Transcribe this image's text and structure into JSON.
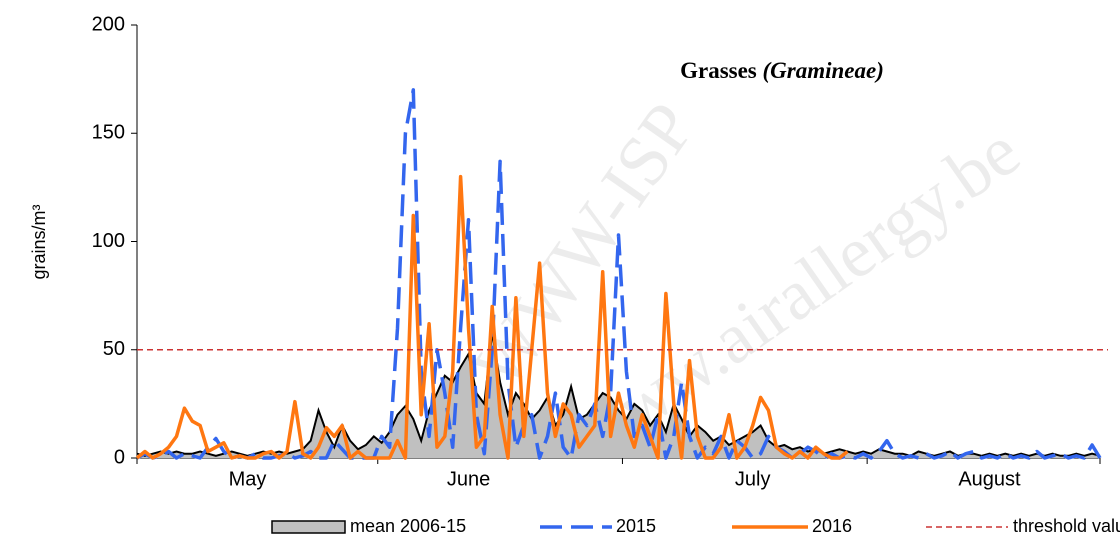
{
  "chart_data": {
    "type": "line",
    "title": "Grasses",
    "title_italic": "(Gramineae)",
    "ylabel": "grains/m³",
    "watermark": [
      "WWW-ISP",
      "www.airallergy.be"
    ],
    "categories": [
      null,
      null,
      null,
      null,
      null,
      null,
      null,
      null,
      null,
      null,
      null,
      null,
      null,
      null,
      "May",
      null,
      null,
      null,
      null,
      null,
      null,
      null,
      null,
      null,
      null,
      null,
      null,
      null,
      null,
      null,
      null,
      null,
      null,
      null,
      null,
      null,
      null,
      null,
      null,
      null,
      null,
      null,
      "June",
      null,
      null,
      null,
      null,
      null,
      null,
      null,
      null,
      null,
      null,
      null,
      null,
      null,
      null,
      null,
      null,
      null,
      null,
      null,
      null,
      null,
      null,
      null,
      null,
      null,
      null,
      null,
      null,
      null,
      null,
      null,
      null,
      null,
      null,
      null,
      "July",
      null,
      null,
      null,
      null,
      null,
      null,
      null,
      null,
      null,
      null,
      null,
      null,
      null,
      null,
      null,
      null,
      null,
      null,
      null,
      null,
      null,
      null,
      null,
      null,
      null,
      null,
      null,
      null,
      null,
      "August",
      null,
      null,
      null,
      null,
      null,
      null,
      null,
      null,
      null,
      null,
      null,
      null,
      null,
      null
    ],
    "series": [
      {
        "name": "mean 2006-15",
        "color": "#000000",
        "fill": "#c0c0c0",
        "style": "area",
        "values": [
          2,
          1,
          2,
          3,
          2,
          3,
          2,
          2,
          3,
          2,
          1,
          2,
          3,
          2,
          1,
          2,
          3,
          2,
          3,
          2,
          3,
          4,
          8,
          22,
          12,
          5,
          15,
          8,
          4,
          6,
          10,
          7,
          12,
          20,
          24,
          18,
          8,
          22,
          30,
          38,
          35,
          42,
          48,
          30,
          25,
          58,
          35,
          20,
          30,
          25,
          18,
          22,
          28,
          15,
          20,
          33,
          18,
          20,
          25,
          30,
          28,
          22,
          18,
          25,
          22,
          15,
          20,
          12,
          25,
          18,
          10,
          15,
          12,
          8,
          10,
          6,
          8,
          10,
          12,
          15,
          8,
          5,
          6,
          4,
          5,
          3,
          4,
          2,
          3,
          4,
          3,
          2,
          3,
          2,
          4,
          3,
          2,
          2,
          1,
          3,
          2,
          1,
          2,
          3,
          1,
          2,
          2,
          1,
          2,
          1,
          2,
          1,
          2,
          1,
          2,
          1,
          2,
          1,
          1,
          2,
          1,
          2,
          1
        ]
      },
      {
        "name": "2015",
        "color": "#3366ee",
        "style": "dashed",
        "values": [
          0,
          2,
          0,
          1,
          3,
          0,
          2,
          1,
          0,
          5,
          9,
          3,
          0,
          1,
          0,
          2,
          0,
          0,
          1,
          2,
          0,
          1,
          3,
          0,
          0,
          8,
          4,
          0,
          0,
          0,
          0,
          10,
          5,
          60,
          150,
          170,
          40,
          10,
          50,
          30,
          5,
          60,
          110,
          20,
          2,
          50,
          137,
          35,
          5,
          15,
          20,
          0,
          10,
          30,
          5,
          0,
          20,
          15,
          25,
          10,
          30,
          103,
          40,
          10,
          15,
          5,
          20,
          0,
          10,
          35,
          10,
          0,
          5,
          2,
          10,
          0,
          8,
          5,
          0,
          2,
          10,
          5,
          3,
          0,
          2,
          5,
          3,
          0,
          2,
          0,
          1,
          0,
          2,
          0,
          3,
          8,
          2,
          0,
          1,
          0,
          2,
          0,
          1,
          3,
          0,
          2,
          3,
          0,
          1,
          0,
          2,
          0,
          1,
          0,
          3,
          0,
          1,
          2,
          0,
          1,
          0,
          6,
          0
        ]
      },
      {
        "name": "2016",
        "color": "#ff7711",
        "style": "solid",
        "values": [
          0,
          3,
          0,
          2,
          5,
          10,
          23,
          17,
          15,
          3,
          5,
          7,
          0,
          1,
          0,
          0,
          2,
          3,
          0,
          3,
          26,
          2,
          0,
          5,
          14,
          10,
          15,
          0,
          3,
          0,
          0,
          0,
          0,
          8,
          0,
          112,
          20,
          62,
          5,
          10,
          40,
          130,
          60,
          5,
          10,
          70,
          20,
          0,
          74,
          10,
          50,
          90,
          30,
          10,
          25,
          20,
          5,
          10,
          15,
          86,
          10,
          30,
          15,
          5,
          20,
          10,
          0,
          76,
          25,
          0,
          45,
          10,
          0,
          0,
          5,
          20,
          0,
          5,
          15,
          28,
          22,
          5,
          2,
          0,
          3,
          0,
          5,
          2,
          0,
          0,
          3,
          null,
          null,
          null,
          null,
          null,
          null,
          null,
          null,
          null,
          null,
          null,
          null,
          null,
          null,
          null,
          null,
          null,
          null,
          null,
          null,
          null,
          null,
          null,
          null,
          null,
          null,
          null,
          null,
          null,
          null,
          null,
          null
        ]
      }
    ],
    "threshold": {
      "name": "threshold value",
      "value": 50,
      "color": "#cc3333"
    },
    "ylim": [
      0,
      200
    ],
    "yticks": [
      0,
      50,
      100,
      150,
      200
    ],
    "grid": false
  }
}
